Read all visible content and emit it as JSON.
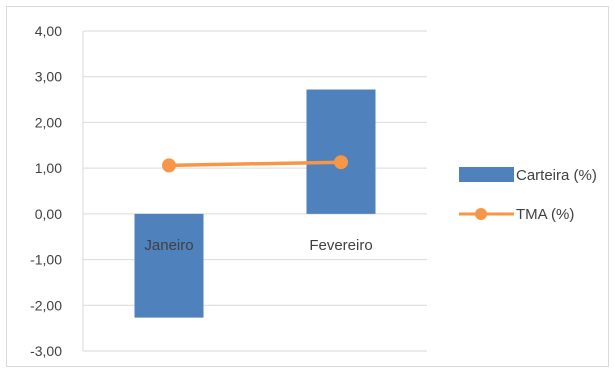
{
  "chart_data": {
    "type": "bar",
    "categories": [
      "Janeiro",
      "Fevereiro"
    ],
    "ylim": [
      -3,
      4
    ],
    "yticks": [
      "4,00",
      "3,00",
      "2,00",
      "1,00",
      "0,00",
      "-1,00",
      "-2,00",
      "-3,00"
    ],
    "ytick_values": [
      4,
      3,
      2,
      1,
      0,
      -1,
      -2,
      -3
    ],
    "grid": true,
    "legend_position": "right",
    "series": [
      {
        "name": "Carteira (%)",
        "kind": "bar",
        "values": [
          -2.27,
          2.72
        ],
        "color": "#4f81bd"
      },
      {
        "name": "TMA (%)",
        "kind": "line",
        "values": [
          1.06,
          1.13
        ],
        "color": "#f79646"
      }
    ]
  }
}
